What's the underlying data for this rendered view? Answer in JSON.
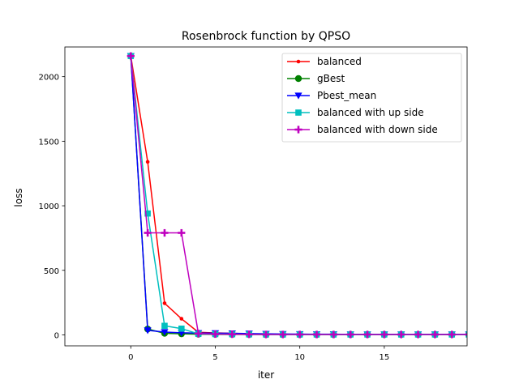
{
  "chart_data": {
    "type": "line",
    "title": "Rosenbrock function by QPSO",
    "xlabel": "iter",
    "ylabel": "loss",
    "xlim": [
      -3.9,
      19.9
    ],
    "ylim": [
      -85,
      2230
    ],
    "xticks": [
      0,
      5,
      10,
      15
    ],
    "yticks": [
      0,
      500,
      1000,
      1500,
      2000
    ],
    "grid": false,
    "legend_position": "top-right",
    "x": [
      0,
      1,
      2,
      3,
      4,
      5,
      6,
      7,
      8,
      9,
      10,
      11,
      12,
      13,
      14,
      15,
      16,
      17,
      18,
      19,
      20
    ],
    "series": [
      {
        "name": "balanced",
        "color": "#ff0000",
        "marker": "point",
        "values": [
          2160,
          1340,
          245,
          125,
          20,
          15,
          12,
          8,
          6,
          5,
          4,
          4,
          3,
          3,
          3,
          3,
          3,
          3,
          3,
          3,
          3
        ]
      },
      {
        "name": "gBest",
        "color": "#008000",
        "marker": "circle",
        "values": [
          2160,
          45,
          12,
          8,
          5,
          4,
          3,
          3,
          2,
          2,
          2,
          2,
          2,
          2,
          2,
          2,
          2,
          2,
          2,
          2,
          2
        ]
      },
      {
        "name": "Pbest_mean",
        "color": "#0000ff",
        "marker": "triangle_down",
        "values": [
          2160,
          35,
          22,
          16,
          14,
          13,
          12,
          10,
          8,
          7,
          6,
          5,
          5,
          4,
          4,
          4,
          4,
          4,
          4,
          4,
          4
        ]
      },
      {
        "name": "balanced with up side",
        "color": "#00bfbf",
        "marker": "square",
        "values": [
          2160,
          940,
          70,
          48,
          8,
          6,
          5,
          4,
          3,
          3,
          3,
          3,
          3,
          3,
          3,
          3,
          3,
          3,
          3,
          3,
          3
        ]
      },
      {
        "name": "balanced with down side",
        "color": "#bf00bf",
        "marker": "plus",
        "values": [
          2160,
          790,
          790,
          790,
          10,
          6,
          5,
          4,
          3,
          3,
          3,
          3,
          3,
          3,
          3,
          3,
          3,
          3,
          3,
          3,
          3
        ]
      }
    ]
  }
}
